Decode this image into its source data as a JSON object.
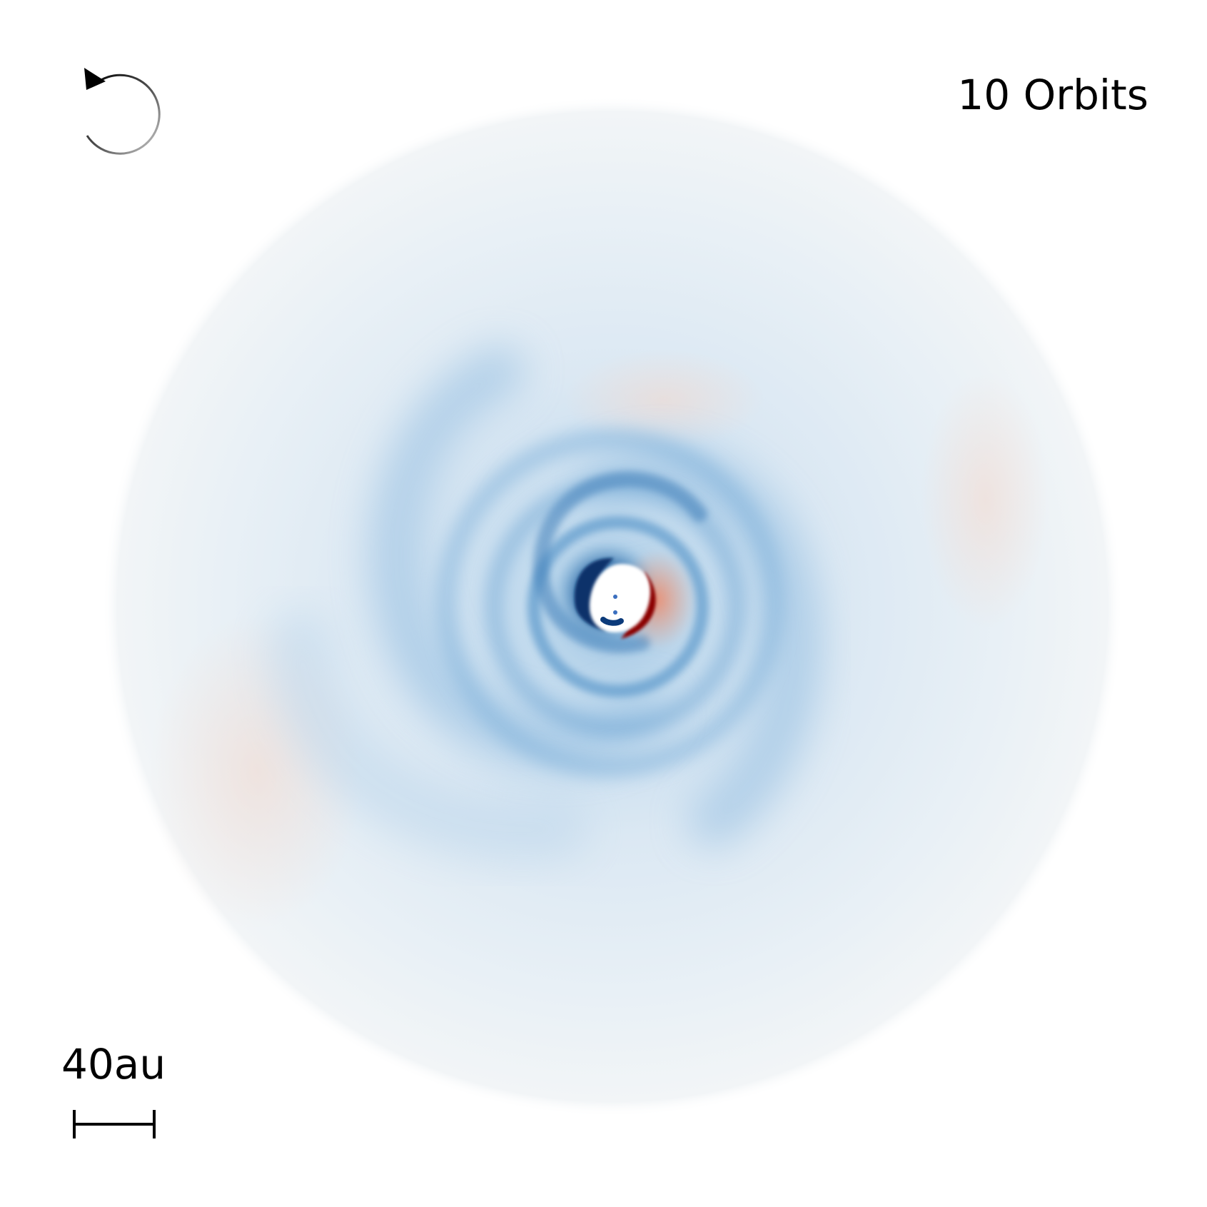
{
  "orbit_label": "10 Orbits",
  "scale_bar": {
    "label": "40au"
  },
  "rotation_indicator": {
    "icon": "counterclockwise-rotation-arrow-icon",
    "direction": "counterclockwise"
  },
  "colors": {
    "background": "#ffffff",
    "underdense_dark": "#08306b",
    "underdense_mid": "#4a90c8",
    "underdense_light": "#c6dbef",
    "overdense_dark": "#8b0000",
    "overdense_light": "#f4a582",
    "neutral": "#f3f5f6",
    "text": "#000000"
  }
}
